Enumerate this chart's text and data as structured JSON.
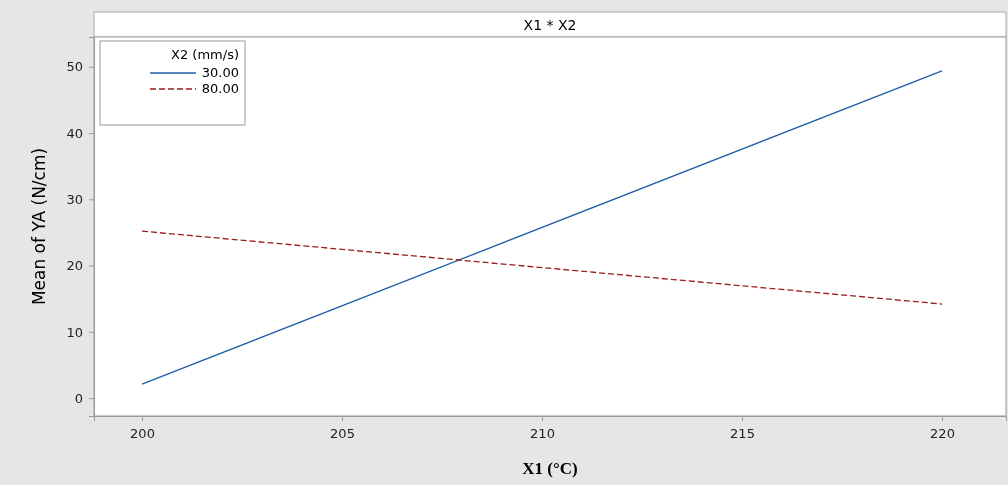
{
  "chart_data": {
    "type": "line",
    "title": "X1 * X2",
    "xlabel": "X1 (°C)",
    "ylabel": "Mean of YA (N/cm)",
    "legend_title": "X2 (mm/s)",
    "x": [
      200,
      220
    ],
    "series": [
      {
        "name": "30.00",
        "color": "#1f5fa8",
        "values": [
          2.1,
          49.4
        ],
        "line_style": "solid"
      },
      {
        "name": "80.00",
        "color": "#9b1c1c",
        "values": [
          25.2,
          14.2
        ],
        "line_style": "dashed"
      }
    ],
    "xlim": [
      198.8,
      221.6
    ],
    "xticks": [
      200,
      205,
      210,
      215,
      220
    ],
    "ylim": [
      -2.7,
      54.5
    ],
    "yticks": [
      0,
      10,
      20,
      30,
      40,
      50
    ],
    "legend": "top left",
    "grid": false
  }
}
